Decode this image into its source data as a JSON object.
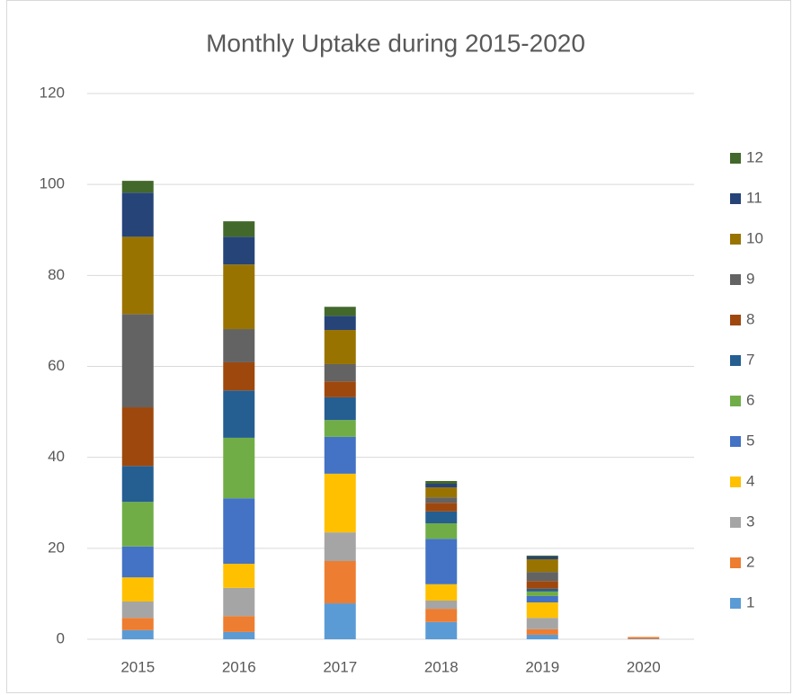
{
  "chart_data": {
    "type": "stacked_bar",
    "title": "Monthly Uptake during 2015-2020",
    "categories": [
      "2015",
      "2016",
      "2017",
      "2018",
      "2019",
      "2020"
    ],
    "series": [
      {
        "name": "1",
        "color": "#5b9bd5",
        "values": [
          2.0,
          1.6,
          7.9,
          3.8,
          1.0,
          0.1
        ]
      },
      {
        "name": "2",
        "color": "#ed7d31",
        "values": [
          2.7,
          3.5,
          9.3,
          2.9,
          1.2,
          0.4
        ]
      },
      {
        "name": "3",
        "color": "#a5a5a5",
        "values": [
          3.6,
          6.2,
          6.3,
          1.8,
          2.5,
          0
        ]
      },
      {
        "name": "4",
        "color": "#ffc000",
        "values": [
          5.3,
          5.3,
          12.9,
          3.6,
          3.4,
          0
        ]
      },
      {
        "name": "5",
        "color": "#4472c4",
        "values": [
          6.8,
          14.4,
          8.1,
          10.0,
          1.4,
          0
        ]
      },
      {
        "name": "6",
        "color": "#70ad47",
        "values": [
          9.8,
          13.3,
          3.7,
          3.4,
          1.0,
          0
        ]
      },
      {
        "name": "7",
        "color": "#255e91",
        "values": [
          7.9,
          10.4,
          5.0,
          2.6,
          0.6,
          0
        ]
      },
      {
        "name": "8",
        "color": "#9e480e",
        "values": [
          12.9,
          6.2,
          3.5,
          1.9,
          1.7,
          0
        ]
      },
      {
        "name": "9",
        "color": "#636363",
        "values": [
          20.5,
          7.3,
          3.8,
          1.2,
          2.0,
          0
        ]
      },
      {
        "name": "10",
        "color": "#997300",
        "values": [
          17.0,
          14.2,
          7.5,
          2.2,
          2.8,
          0
        ]
      },
      {
        "name": "11",
        "color": "#264478",
        "values": [
          9.7,
          6.1,
          3.1,
          0.8,
          0.6,
          0
        ]
      },
      {
        "name": "12",
        "color": "#43682b",
        "values": [
          2.6,
          3.4,
          2.0,
          0.6,
          0.2,
          0
        ]
      }
    ],
    "ylim": [
      0,
      120
    ],
    "yticks": [
      0,
      20,
      40,
      60,
      80,
      100,
      120
    ],
    "grid": true,
    "legend": "right"
  }
}
